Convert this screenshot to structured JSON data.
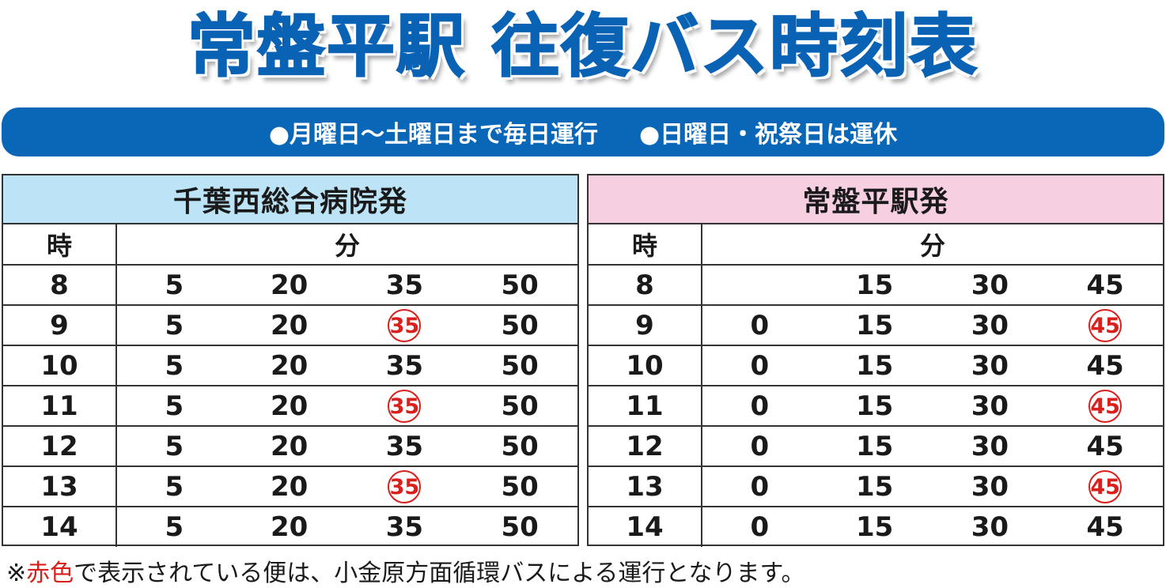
{
  "title": "常盤平駅 往復バス時刻表",
  "banner": {
    "item1": "●月曜日～土曜日まで毎日運行",
    "item2": "●日曜日・祝祭日は運休"
  },
  "left": {
    "header": "千葉西総合病院発",
    "hour_label": "時",
    "minute_label": "分",
    "rows": [
      {
        "hour": "8",
        "m": [
          "5",
          "20",
          "35",
          "50"
        ],
        "red": [
          false,
          false,
          false,
          false
        ]
      },
      {
        "hour": "9",
        "m": [
          "5",
          "20",
          "35",
          "50"
        ],
        "red": [
          false,
          false,
          true,
          false
        ]
      },
      {
        "hour": "10",
        "m": [
          "5",
          "20",
          "35",
          "50"
        ],
        "red": [
          false,
          false,
          false,
          false
        ]
      },
      {
        "hour": "11",
        "m": [
          "5",
          "20",
          "35",
          "50"
        ],
        "red": [
          false,
          false,
          true,
          false
        ]
      },
      {
        "hour": "12",
        "m": [
          "5",
          "20",
          "35",
          "50"
        ],
        "red": [
          false,
          false,
          false,
          false
        ]
      },
      {
        "hour": "13",
        "m": [
          "5",
          "20",
          "35",
          "50"
        ],
        "red": [
          false,
          false,
          true,
          false
        ]
      },
      {
        "hour": "14",
        "m": [
          "5",
          "20",
          "35",
          "50"
        ],
        "red": [
          false,
          false,
          false,
          false
        ]
      }
    ]
  },
  "right": {
    "header": "常盤平駅発",
    "hour_label": "時",
    "minute_label": "分",
    "rows": [
      {
        "hour": "8",
        "m": [
          "",
          "15",
          "30",
          "45"
        ],
        "red": [
          false,
          false,
          false,
          false
        ]
      },
      {
        "hour": "9",
        "m": [
          "0",
          "15",
          "30",
          "45"
        ],
        "red": [
          false,
          false,
          false,
          true
        ]
      },
      {
        "hour": "10",
        "m": [
          "0",
          "15",
          "30",
          "45"
        ],
        "red": [
          false,
          false,
          false,
          false
        ]
      },
      {
        "hour": "11",
        "m": [
          "0",
          "15",
          "30",
          "45"
        ],
        "red": [
          false,
          false,
          false,
          true
        ]
      },
      {
        "hour": "12",
        "m": [
          "0",
          "15",
          "30",
          "45"
        ],
        "red": [
          false,
          false,
          false,
          false
        ]
      },
      {
        "hour": "13",
        "m": [
          "0",
          "15",
          "30",
          "45"
        ],
        "red": [
          false,
          false,
          false,
          true
        ]
      },
      {
        "hour": "14",
        "m": [
          "0",
          "15",
          "30",
          "45"
        ],
        "red": [
          false,
          false,
          false,
          false
        ]
      }
    ]
  },
  "note": {
    "prefix": "※",
    "red_text": "赤色",
    "suffix": "で表示されている便は、小金原方面循環バスによる運行となります。"
  },
  "colors": {
    "title_blue": "#0a62b4",
    "banner_blue": "#0a67b8",
    "left_header_bg": "#bde3f6",
    "right_header_bg": "#f6cfe0",
    "highlight_red": "#d9201c"
  }
}
